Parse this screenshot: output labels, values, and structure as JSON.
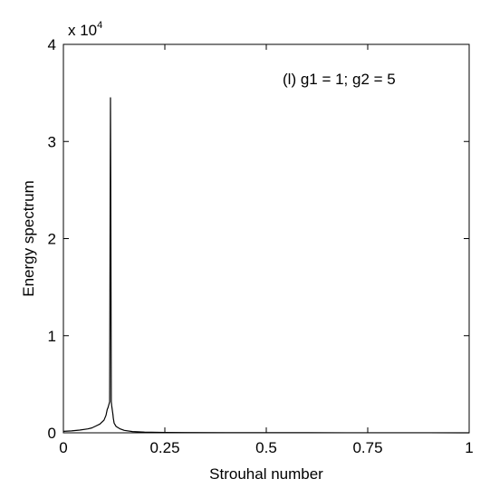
{
  "chart_data": {
    "type": "line",
    "xlabel": "Strouhal number",
    "ylabel": "Energy spectrum",
    "annotation": "(l) g1 = 1; g2 = 5",
    "y_multiplier_base": "x 10",
    "y_multiplier_exponent": "4",
    "xlim": [
      0,
      1
    ],
    "ylim": [
      0,
      40000
    ],
    "x_ticks": [
      0,
      0.25,
      0.5,
      0.75,
      1
    ],
    "x_tick_labels": [
      "0",
      "0.25",
      "0.5",
      "0.75",
      "1"
    ],
    "y_ticks": [
      0,
      10000,
      20000,
      30000,
      40000
    ],
    "y_tick_labels": [
      "0",
      "1",
      "2",
      "3",
      "4"
    ],
    "grid": false,
    "series_color": "#000000",
    "series": [
      {
        "x": [
          0.0,
          0.02,
          0.04,
          0.06,
          0.07,
          0.08,
          0.09,
          0.1,
          0.105,
          0.108,
          0.11,
          0.112,
          0.114,
          0.115,
          0.116,
          0.117,
          0.118,
          0.119,
          0.12,
          0.121,
          0.122,
          0.123,
          0.125,
          0.13,
          0.14,
          0.15,
          0.17,
          0.2,
          0.25,
          0.3,
          0.4,
          0.5,
          0.6,
          0.7,
          0.8,
          0.9,
          1.0
        ],
        "y": [
          150,
          200,
          280,
          400,
          500,
          700,
          900,
          1300,
          1800,
          2400,
          2600,
          2900,
          3200,
          20000,
          34500,
          21200,
          3200,
          2800,
          2500,
          2200,
          1900,
          1500,
          1000,
          650,
          400,
          250,
          130,
          70,
          40,
          25,
          15,
          10,
          8,
          6,
          5,
          4,
          3
        ]
      }
    ]
  }
}
